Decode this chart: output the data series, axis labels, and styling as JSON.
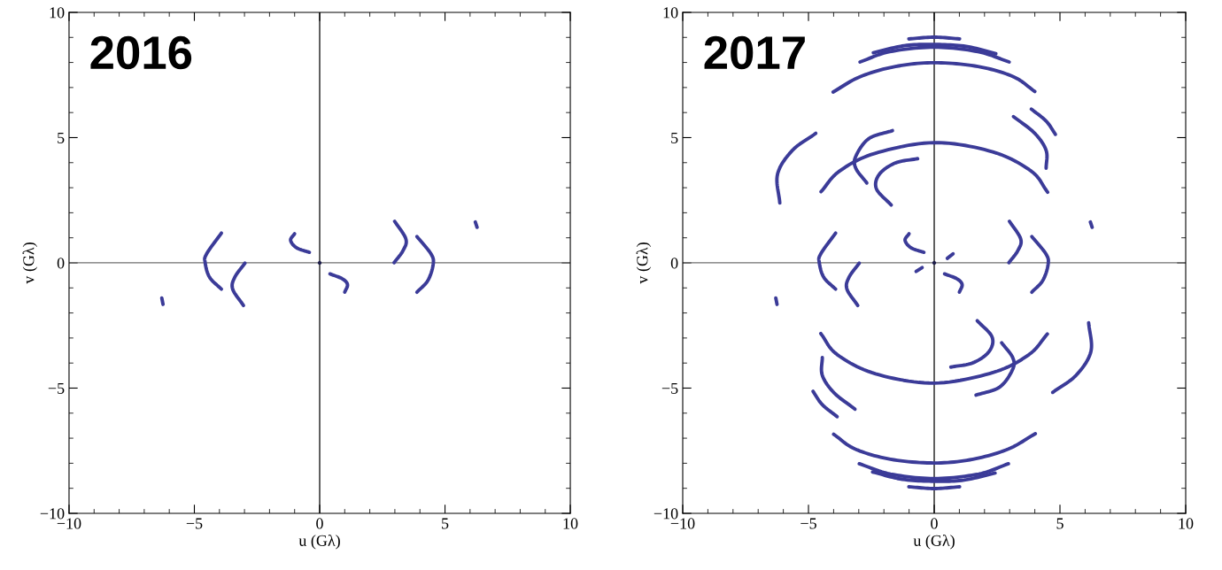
{
  "chart_data": [
    {
      "type": "line",
      "annotations": [
        "2016"
      ],
      "xlabel": "u (Gλ)",
      "ylabel": "v (Gλ)",
      "xlim": [
        -10,
        10
      ],
      "ylim": [
        -10,
        10
      ],
      "xticks": [
        -10,
        -5,
        0,
        5,
        10
      ],
      "yticks": [
        -10,
        -5,
        0,
        5,
        10
      ],
      "grid": false,
      "ref_lines": [
        {
          "axis": "x",
          "value": 0,
          "color": "#000000"
        },
        {
          "axis": "y",
          "value": 0,
          "color": "#6e6e6e"
        }
      ],
      "series": [
        {
          "color": "#3b3b98",
          "x": [
            -3.92,
            -4.51,
            -4.57,
            -4.39,
            -3.92
          ],
          "values": [
            1.19,
            0.36,
            0.01,
            -0.58,
            -1.05
          ]
        },
        {
          "color": "#3b3b98",
          "x": [
            3.88,
            4.44,
            4.53,
            4.32,
            3.88
          ],
          "values": [
            1.05,
            0.36,
            -0.05,
            -0.7,
            -1.17
          ]
        },
        {
          "color": "#3b3b98",
          "x": [
            -2.98,
            -3.39,
            -3.47,
            -3.04
          ],
          "values": [
            -0.01,
            -0.58,
            -1.05,
            -1.7
          ]
        },
        {
          "color": "#3b3b98",
          "x": [
            2.99,
            3.44,
            3.32,
            2.97
          ],
          "values": [
            1.66,
            0.95,
            0.48,
            0.01
          ]
        },
        {
          "color": "#3b3b98",
          "x": [
            -1.0,
            -1.16,
            -0.92,
            -0.41
          ],
          "values": [
            1.16,
            0.9,
            0.6,
            0.42
          ]
        },
        {
          "color": "#3b3b98",
          "x": [
            0.41,
            0.91,
            1.11,
            1.0
          ],
          "values": [
            -0.44,
            -0.64,
            -0.87,
            -1.17
          ]
        },
        {
          "color": "#3b3b98",
          "x": [
            6.21,
            6.28
          ],
          "values": [
            1.63,
            1.42
          ]
        },
        {
          "color": "#3b3b98",
          "x": [
            -6.3,
            -6.25
          ],
          "values": [
            -1.4,
            -1.66
          ]
        },
        {
          "type": "scatter",
          "color": "#1e1e4a",
          "x": [
            0
          ],
          "values": [
            0
          ]
        }
      ]
    },
    {
      "type": "line",
      "annotations": [
        "2017"
      ],
      "xlabel": "u (Gλ)",
      "ylabel": "v (Gλ)",
      "xlim": [
        -10,
        10
      ],
      "ylim": [
        -10,
        10
      ],
      "xticks": [
        -10,
        -5,
        0,
        5,
        10
      ],
      "yticks": [
        -10,
        -5,
        0,
        5,
        10
      ],
      "grid": false,
      "ref_lines": [
        {
          "axis": "x",
          "value": 0,
          "color": "#000000"
        },
        {
          "axis": "y",
          "value": 0,
          "color": "#6e6e6e"
        }
      ],
      "series": [
        {
          "color": "#3b3b98",
          "x": [
            -3.92,
            -4.51,
            -4.57,
            -4.39,
            -3.92
          ],
          "values": [
            1.19,
            0.36,
            0.01,
            -0.58,
            -1.05
          ]
        },
        {
          "color": "#3b3b98",
          "x": [
            3.88,
            4.44,
            4.53,
            4.32,
            3.88
          ],
          "values": [
            1.05,
            0.36,
            -0.05,
            -0.7,
            -1.17
          ]
        },
        {
          "color": "#3b3b98",
          "x": [
            -2.98,
            -3.39,
            -3.47,
            -3.04
          ],
          "values": [
            -0.01,
            -0.58,
            -1.05,
            -1.7
          ]
        },
        {
          "color": "#3b3b98",
          "x": [
            2.99,
            3.44,
            3.32,
            2.97
          ],
          "values": [
            1.66,
            0.95,
            0.48,
            0.01
          ]
        },
        {
          "color": "#3b3b98",
          "x": [
            -1.0,
            -1.16,
            -0.92,
            -0.41
          ],
          "values": [
            1.16,
            0.9,
            0.6,
            0.42
          ]
        },
        {
          "color": "#3b3b98",
          "x": [
            0.41,
            0.91,
            1.11,
            1.0
          ],
          "values": [
            -0.44,
            -0.64,
            -0.87,
            -1.17
          ]
        },
        {
          "color": "#3b3b98",
          "x": [
            6.21,
            6.28
          ],
          "values": [
            1.63,
            1.42
          ]
        },
        {
          "color": "#3b3b98",
          "x": [
            -6.3,
            -6.25
          ],
          "values": [
            -1.4,
            -1.66
          ]
        },
        {
          "color": "#3b3b98",
          "x": [
            0.52,
            0.75
          ],
          "values": [
            0.18,
            0.36
          ]
        },
        {
          "color": "#3b3b98",
          "x": [
            -0.72,
            -0.48
          ],
          "values": [
            -0.34,
            -0.19
          ]
        },
        {
          "color": "#3b3b98",
          "x": [
            -1.01,
            0,
            1.01
          ],
          "values": [
            8.94,
            9.01,
            8.94
          ]
        },
        {
          "color": "#3b3b98",
          "x": [
            1.01,
            0,
            -1.01
          ],
          "values": [
            -8.94,
            -9.01,
            -8.94
          ]
        },
        {
          "color": "#3b3b98",
          "x": [
            -2.42,
            -1.19,
            0,
            1.27,
            2.45
          ],
          "values": [
            8.39,
            8.67,
            8.72,
            8.64,
            8.35
          ]
        },
        {
          "color": "#3b3b98",
          "x": [
            2.42,
            1.19,
            0,
            -1.27,
            -2.45
          ],
          "values": [
            -8.39,
            -8.67,
            -8.72,
            -8.64,
            -8.35
          ]
        },
        {
          "color": "#3b3b98",
          "x": [
            -2.95,
            -1.77,
            0,
            1.74,
            2.98
          ],
          "values": [
            8.02,
            8.43,
            8.61,
            8.43,
            8.02
          ]
        },
        {
          "color": "#3b3b98",
          "x": [
            2.95,
            1.77,
            0,
            -1.74,
            -2.98
          ],
          "values": [
            -8.02,
            -8.43,
            -8.61,
            -8.43,
            -8.02
          ]
        },
        {
          "color": "#3b3b98",
          "x": [
            -4.02,
            -2.95,
            -1.54,
            0,
            1.74,
            3.15,
            4.0
          ],
          "values": [
            6.82,
            7.43,
            7.84,
            7.99,
            7.84,
            7.43,
            6.84
          ]
        },
        {
          "color": "#3b3b98",
          "x": [
            4.02,
            2.95,
            1.54,
            0,
            -1.74,
            -3.15,
            -4.0
          ],
          "values": [
            -6.82,
            -7.43,
            -7.84,
            -7.99,
            -7.84,
            -7.43,
            -6.84
          ]
        },
        {
          "color": "#3b3b98",
          "x": [
            3.86,
            4.45,
            4.82
          ],
          "values": [
            6.14,
            5.66,
            5.13
          ]
        },
        {
          "color": "#3b3b98",
          "x": [
            -3.86,
            -4.45,
            -4.82
          ],
          "values": [
            -6.14,
            -5.66,
            -5.13
          ]
        },
        {
          "color": "#3b3b98",
          "x": [
            3.15,
            3.98,
            4.45,
            4.45
          ],
          "values": [
            5.84,
            5.19,
            4.49,
            3.78
          ]
        },
        {
          "color": "#3b3b98",
          "x": [
            -3.15,
            -3.98,
            -4.45,
            -4.45
          ],
          "values": [
            -5.84,
            -5.19,
            -4.49,
            -3.78
          ]
        },
        {
          "color": "#3b3b98",
          "x": [
            -4.5,
            -3.77,
            -2.36,
            0,
            2.33,
            3.86,
            4.51
          ],
          "values": [
            2.84,
            3.66,
            4.37,
            4.8,
            4.43,
            3.66,
            2.82
          ]
        },
        {
          "color": "#3b3b98",
          "x": [
            4.5,
            3.77,
            2.36,
            0,
            -2.33,
            -3.86,
            -4.51
          ],
          "values": [
            -2.84,
            -3.66,
            -4.37,
            -4.8,
            -4.43,
            -3.66,
            -2.82
          ]
        },
        {
          "color": "#3b3b98",
          "x": [
            -4.71,
            -5.64,
            -6.23,
            -6.14
          ],
          "values": [
            5.17,
            4.49,
            3.54,
            2.39
          ]
        },
        {
          "color": "#3b3b98",
          "x": [
            4.71,
            5.64,
            6.23,
            6.14
          ],
          "values": [
            -5.17,
            -4.49,
            -3.54,
            -2.39
          ]
        },
        {
          "color": "#3b3b98",
          "x": [
            -1.66,
            -2.6,
            -3.12,
            -3.12,
            -2.68
          ],
          "values": [
            5.28,
            4.96,
            4.25,
            3.78,
            3.19
          ]
        },
        {
          "color": "#3b3b98",
          "x": [
            1.66,
            2.6,
            3.12,
            3.12,
            2.68
          ],
          "values": [
            -5.28,
            -4.96,
            -4.25,
            -3.78,
            -3.19
          ]
        },
        {
          "color": "#3b3b98",
          "x": [
            -0.66,
            -1.54,
            -2.18,
            -2.3,
            -1.71
          ],
          "values": [
            4.16,
            3.99,
            3.54,
            2.96,
            2.31
          ]
        },
        {
          "color": "#3b3b98",
          "x": [
            0.66,
            1.54,
            2.18,
            2.3,
            1.71
          ],
          "values": [
            -4.16,
            -3.99,
            -3.54,
            -2.96,
            -2.31
          ]
        },
        {
          "type": "scatter",
          "color": "#1e1e4a",
          "x": [
            0
          ],
          "values": [
            0
          ]
        }
      ]
    }
  ]
}
